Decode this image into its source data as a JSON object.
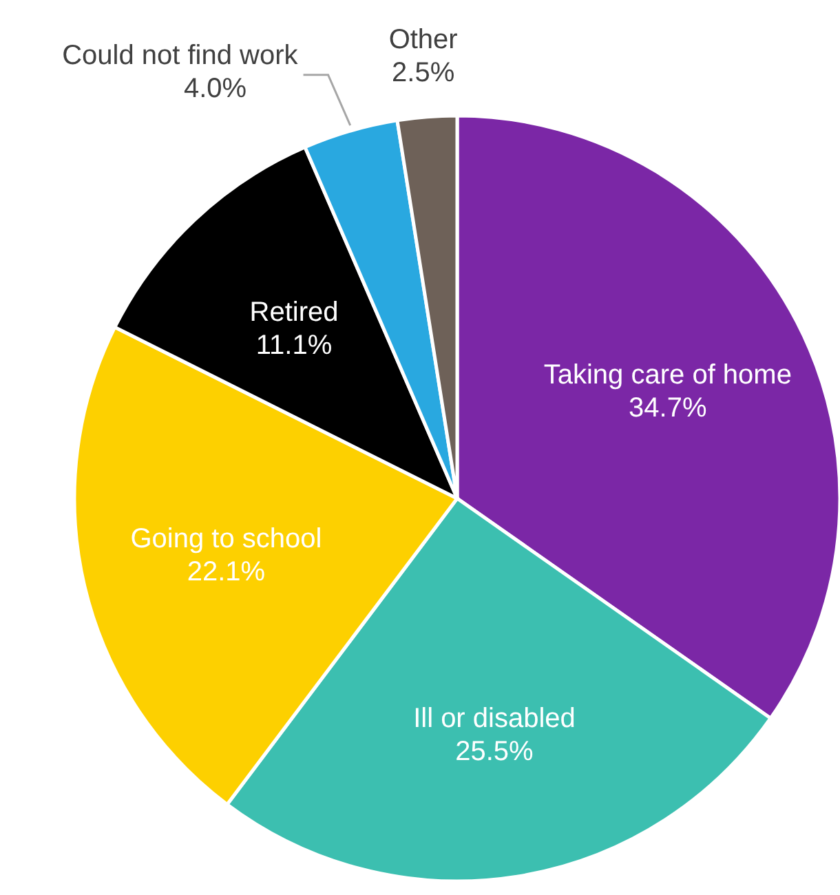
{
  "chart_data": {
    "type": "pie",
    "categories": [
      "Taking care of home",
      "Ill or disabled",
      "Going to school",
      "Retired",
      "Could not find work",
      "Other"
    ],
    "values": [
      34.7,
      25.5,
      22.1,
      11.1,
      4.0,
      2.5
    ],
    "value_labels": [
      "34.7%",
      "25.5%",
      "22.1%",
      "11.1%",
      "4.0%",
      "2.5%"
    ],
    "colors": [
      "#7b27a6",
      "#3cbfb0",
      "#fdd000",
      "#000000",
      "#29a8e0",
      "#6e6158"
    ]
  }
}
